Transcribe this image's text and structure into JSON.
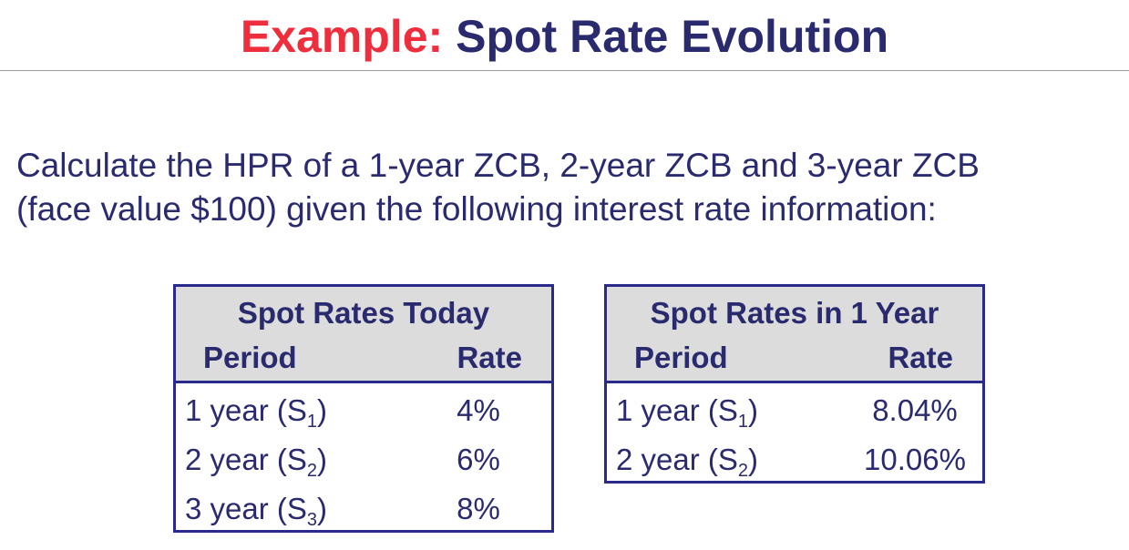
{
  "slide": {
    "title_prefix": "Example:",
    "title_main": "Spot Rate Evolution",
    "intro_line1": "Calculate the HPR of a 1-year ZCB, 2-year ZCB and 3-year ZCB",
    "intro_line2": "(face value $100) given the following interest rate information:"
  },
  "tables": {
    "today": {
      "caption": "Spot Rates Today",
      "col_period": "Period",
      "col_rate": "Rate",
      "rows": [
        {
          "period": "1 year (S",
          "sub": "1",
          "close": ")",
          "rate": "4%"
        },
        {
          "period": "2 year (S",
          "sub": "2",
          "close": ")",
          "rate": "6%"
        },
        {
          "period": "3 year (S",
          "sub": "3",
          "close": ")",
          "rate": "8%"
        }
      ]
    },
    "future": {
      "caption": "Spot Rates in 1 Year",
      "col_period": "Period",
      "col_rate": "Rate",
      "rows": [
        {
          "period": "1 year (S",
          "sub": "1",
          "close": ")",
          "rate": "8.04%"
        },
        {
          "period": "2 year (S",
          "sub": "2",
          "close": ")",
          "rate": "10.06%"
        }
      ]
    }
  },
  "colors": {
    "accent_red": "#ee2e3c",
    "navy_text": "#2a2a6e",
    "table_border": "#2a2a8c",
    "header_fill": "#dcdcdc",
    "divider": "#9a9a9a"
  }
}
